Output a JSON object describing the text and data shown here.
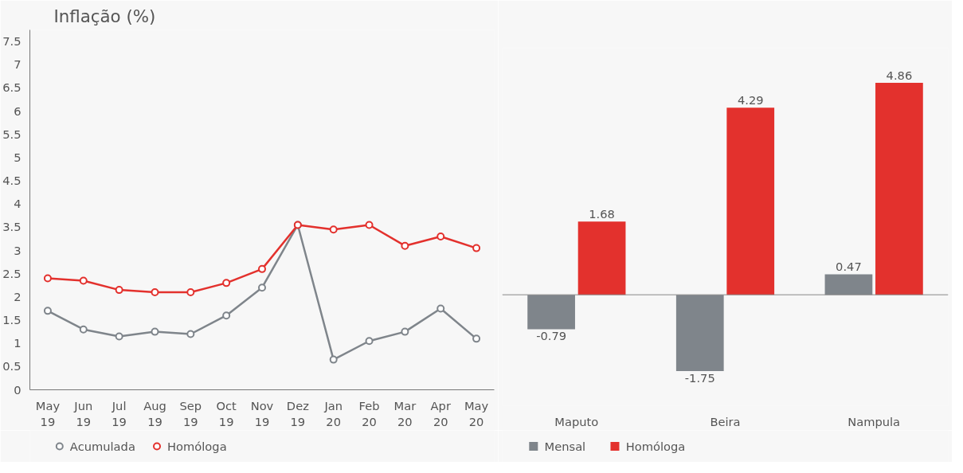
{
  "chart_data": [
    {
      "type": "line",
      "title": "Inflação (%)",
      "categories": [
        "May 19",
        "Jun 19",
        "Jul 19",
        "Aug 19",
        "Sep 19",
        "Oct 19",
        "Nov 19",
        "Dez 19",
        "Jan 20",
        "Feb 20",
        "Mar 20",
        "Apr 20",
        "May 20"
      ],
      "series": [
        {
          "name": "Acumulada",
          "color": "#7f858b",
          "values": [
            1.7,
            1.3,
            1.15,
            1.25,
            1.2,
            1.6,
            2.2,
            3.55,
            0.65,
            1.05,
            1.25,
            1.75,
            1.1
          ]
        },
        {
          "name": "Homóloga",
          "color": "#e3312d",
          "values": [
            2.4,
            2.35,
            2.15,
            2.1,
            2.1,
            2.3,
            2.6,
            3.55,
            3.45,
            3.55,
            3.1,
            3.3,
            3.05
          ]
        }
      ],
      "ylim": [
        0,
        7.75
      ],
      "yticks": [
        0,
        0.5,
        1,
        1.5,
        2,
        2.5,
        3,
        3.5,
        4,
        4.5,
        5,
        5.5,
        6,
        6.5,
        7,
        7.5
      ],
      "grid": false,
      "legend": "bottom left",
      "marker": "circle",
      "line_style": "solid"
    },
    {
      "type": "bar",
      "categories": [
        "Maputo",
        "Beira",
        "Nampula"
      ],
      "series": [
        {
          "name": "Mensal",
          "color": "#7f858b",
          "values": [
            -0.79,
            -1.75,
            0.47
          ]
        },
        {
          "name": "Homóloga",
          "color": "#e3312d",
          "values": [
            1.68,
            4.29,
            4.86
          ]
        }
      ],
      "data_labels": true,
      "legend": "bottom left",
      "grid": false
    }
  ]
}
